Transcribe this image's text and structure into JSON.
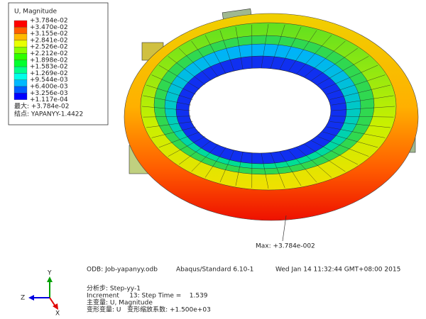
{
  "legend": {
    "title": "U, Magnitude",
    "labels": [
      "+3.784e-02",
      "+3.470e-02",
      "+3.155e-02",
      "+2.841e-02",
      "+2.526e-02",
      "+2.212e-02",
      "+1.898e-02",
      "+1.583e-02",
      "+1.269e-02",
      "+9.544e-03",
      "+6.400e-03",
      "+3.256e-03",
      "+1.117e-04"
    ],
    "colors": [
      "#ff0000",
      "#ff5d00",
      "#ffb900",
      "#e8ff00",
      "#8bff00",
      "#2eff00",
      "#00ff2e",
      "#00ff8b",
      "#00ffe8",
      "#00b9ff",
      "#005dff",
      "#0000ff"
    ],
    "max": "最大: +3.784e-02",
    "node": "结点: YAPANYY-1.4422"
  },
  "annotation": "Max: +3.784e-002",
  "info": {
    "odb": "ODB: Job-yapanyy.odb",
    "solver": "Abaqus/Standard 6.10-1",
    "date": "Wed Jan 14 11:32:44 GMT+08:00 2015",
    "step": "分析步: Step-yy-1",
    "increment": "Increment     13: Step Time =    1.539",
    "primary": "主变量: U, Magnitude",
    "deformed": "变形变量: U   变形缩放系数: +1.500e+03"
  },
  "triad": {
    "y": "Y",
    "z": "Z",
    "x": "X"
  }
}
